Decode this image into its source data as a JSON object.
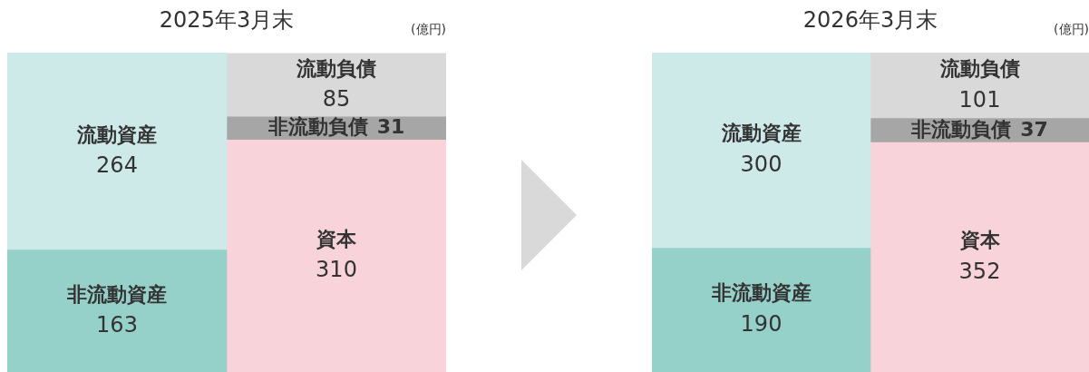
{
  "chart_data": [
    {
      "type": "bar",
      "title": "2025年3月末",
      "annotations": [
        "(億円)"
      ],
      "stacked": true,
      "data_labels": true,
      "legend": false,
      "categories": [
        null,
        null
      ],
      "series": [
        {
          "name": "非流動資産",
          "color": "#96d1c9",
          "values": [
            163,
            null
          ]
        },
        {
          "name": "流動資産",
          "color": "#cdeae8",
          "values": [
            264,
            null
          ]
        },
        {
          "name": "資本",
          "color": "#f8d4da",
          "values": [
            null,
            310
          ]
        },
        {
          "name": "非流動負債",
          "color": "#a6a6a6",
          "values": [
            null,
            31
          ]
        },
        {
          "name": "流動負債",
          "color": "#d9d9d9",
          "values": [
            null,
            85
          ]
        }
      ]
    },
    {
      "type": "bar",
      "title": "2026年3月末",
      "annotations": [
        "(億円)"
      ],
      "stacked": true,
      "data_labels": true,
      "legend": false,
      "categories": [
        null,
        null
      ],
      "series": [
        {
          "name": "非流動資産",
          "color": "#96d1c9",
          "values": [
            190,
            null
          ]
        },
        {
          "name": "流動資産",
          "color": "#cdeae8",
          "values": [
            300,
            null
          ]
        },
        {
          "name": "資本",
          "color": "#f8d4da",
          "values": [
            null,
            352
          ]
        },
        {
          "name": "非流動負債",
          "color": "#a6a6a6",
          "values": [
            null,
            37
          ]
        },
        {
          "name": "流動負債",
          "color": "#d9d9d9",
          "values": [
            null,
            101
          ]
        }
      ]
    }
  ]
}
